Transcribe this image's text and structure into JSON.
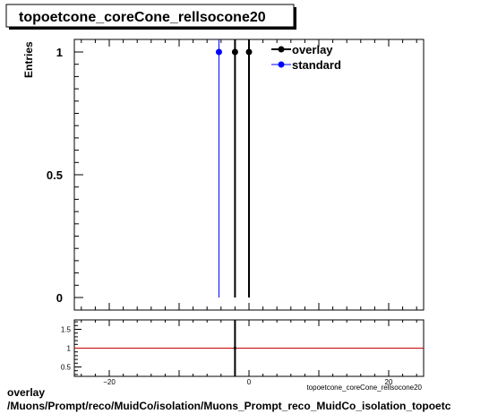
{
  "chart_data": [
    {
      "type": "scatter",
      "title": "topoetcone_coreCone_rellsocone20",
      "ylabel": "Entries",
      "ylim": [
        0,
        1.05
      ],
      "yticks": [
        0,
        0.5,
        1
      ],
      "ytick_labels": [
        "0",
        "0.5",
        "1"
      ],
      "legend_position": "top-right",
      "series": [
        {
          "name": "overlay",
          "color": "#000000",
          "x": [
            -2,
            0
          ],
          "y": [
            1,
            1
          ]
        },
        {
          "name": "standard",
          "color": "#0000ff",
          "x": [
            -4.3
          ],
          "y": [
            1
          ]
        }
      ]
    },
    {
      "type": "line",
      "xlabel": "topoetcone_coreCone_rellsocone20",
      "xlim": [
        -25,
        25
      ],
      "xticks": [
        -20,
        0,
        20
      ],
      "xtick_labels": [
        "−20",
        "0",
        "20"
      ],
      "ylim": [
        0.25,
        1.75
      ],
      "yticks": [
        0.5,
        1,
        1.5
      ],
      "ytick_labels": [
        "0.5",
        "1",
        "1.5"
      ],
      "reference_line": {
        "y": 1,
        "color": "#cc0000"
      },
      "ratio_points": [
        {
          "x": -2,
          "y": 1
        }
      ]
    }
  ],
  "footer": {
    "line1": "overlay",
    "line2": "/Muons/Prompt/reco/MuidCo/isolation/Muons_Prompt_reco_MuidCo_isolation_topoetc"
  }
}
